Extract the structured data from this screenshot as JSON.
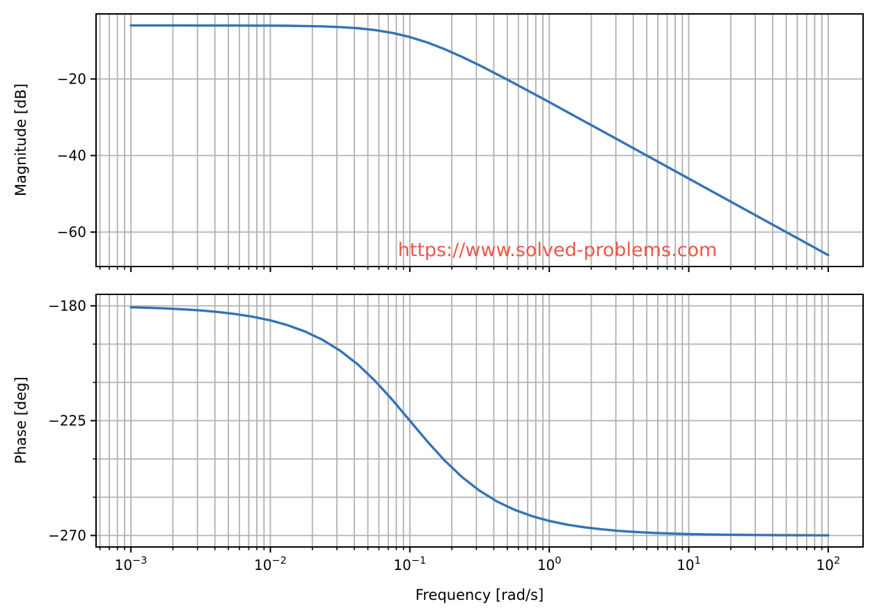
{
  "watermark": {
    "text": "https://www.solved-problems.com",
    "color": "#ef5645"
  },
  "chart_data": {
    "type": "line",
    "title": "",
    "xlabel": "Frequency [rad/s]",
    "x_scale": "log",
    "x_lim_log10": [
      -3.25,
      2.25
    ],
    "x_tick_base": "10",
    "x_major_tick_exponents": [
      -3,
      -2,
      -1,
      0,
      1,
      2
    ],
    "grid": {
      "which": "both",
      "on": true,
      "color": "#b0b0b0"
    },
    "line_color": "#3473b5",
    "axis_color": "#000000",
    "x_log10": [
      -3,
      -2.875,
      -2.75,
      -2.625,
      -2.5,
      -2.375,
      -2.25,
      -2.125,
      -2,
      -1.875,
      -1.75,
      -1.625,
      -1.5,
      -1.375,
      -1.25,
      -1.125,
      -1,
      -0.875,
      -0.75,
      -0.625,
      -0.5,
      -0.375,
      -0.25,
      -0.125,
      0,
      0.125,
      0.25,
      0.375,
      0.5,
      0.625,
      0.75,
      0.875,
      1,
      1.125,
      1.25,
      1.375,
      1.5,
      1.625,
      1.75,
      1.875,
      2
    ],
    "subplots": [
      {
        "id": "magnitude",
        "ylabel": "Magnitude [dB]",
        "ylim": [
          -69,
          -3
        ],
        "yticks_labeled": [
          -20,
          -40,
          -60
        ],
        "yticks_minor": [],
        "x_tick_labels_visible": false,
        "series": {
          "name": "Magnitude",
          "values": [
            -6.02,
            -6.02,
            -6.02,
            -6.02,
            -6.03,
            -6.03,
            -6.03,
            -6.05,
            -6.06,
            -6.1,
            -6.16,
            -6.26,
            -6.43,
            -6.73,
            -7.21,
            -7.96,
            -9.03,
            -10.46,
            -12.21,
            -14.23,
            -16.43,
            -18.76,
            -21.16,
            -23.6,
            -26.06,
            -28.54,
            -31.03,
            -33.53,
            -36.02,
            -38.52,
            -41.02,
            -43.52,
            -46.02,
            -48.52,
            -51.02,
            -53.52,
            -56.02,
            -58.52,
            -61.02,
            -63.52,
            -66.02
          ]
        }
      },
      {
        "id": "phase",
        "ylabel": "Phase [deg]",
        "ylim": [
          -274.5,
          -175.5
        ],
        "yticks_labeled": [
          -180,
          -225,
          -270
        ],
        "yticks_minor": [
          -195,
          -210,
          -240,
          -255
        ],
        "x_tick_labels_visible": true,
        "series": {
          "name": "Phase",
          "values": [
            -180.57,
            -180.76,
            -181.02,
            -181.36,
            -181.81,
            -182.41,
            -183.22,
            -184.29,
            -185.71,
            -187.6,
            -190.08,
            -193.34,
            -197.55,
            -202.86,
            -209.35,
            -216.87,
            -225.0,
            -233.13,
            -240.64,
            -247.14,
            -252.45,
            -256.66,
            -259.91,
            -262.4,
            -264.29,
            -265.71,
            -266.78,
            -267.58,
            -268.19,
            -268.64,
            -268.98,
            -269.24,
            -269.43,
            -269.57,
            -269.68,
            -269.76,
            -269.82,
            -269.86,
            -269.9,
            -269.92,
            -269.94
          ]
        }
      }
    ]
  }
}
